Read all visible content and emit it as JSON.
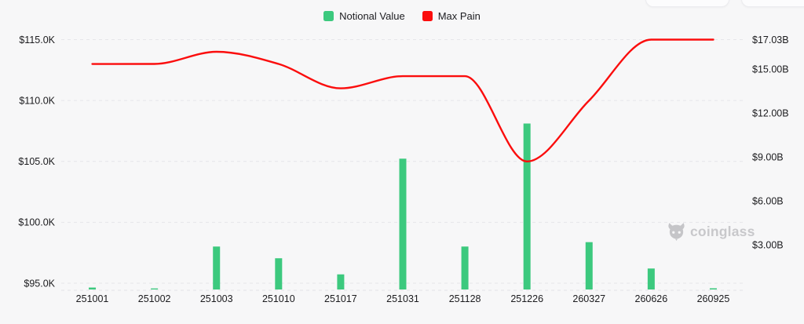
{
  "page": {
    "background_color": "#f7f7f8"
  },
  "legend": {
    "items": [
      {
        "label": "Notional Value",
        "color": "#3cc97e"
      },
      {
        "label": "Max Pain",
        "color": "#fb0d0d"
      }
    ]
  },
  "watermark": {
    "text": "coinglass",
    "color": "#c8c8cb"
  },
  "chart_data": {
    "type": "combo",
    "title": "",
    "categories": [
      "251001",
      "251002",
      "251003",
      "251010",
      "251017",
      "251031",
      "251128",
      "251226",
      "260327",
      "260626",
      "260925"
    ],
    "series": [
      {
        "name": "Notional Value",
        "type": "bar",
        "y_axis": "right",
        "color": "#3cc97e",
        "unit": "B USD",
        "values": [
          0.1,
          0.04,
          2.9,
          2.1,
          1.0,
          8.9,
          2.9,
          11.3,
          3.2,
          1.4,
          0.05
        ]
      },
      {
        "name": "Max Pain",
        "type": "line",
        "y_axis": "left",
        "color": "#fb0d0d",
        "unit": "USD",
        "values": [
          113000,
          113000,
          114000,
          113000,
          111000,
          112000,
          112000,
          105000,
          110000,
          115000,
          115000
        ]
      }
    ],
    "left_axis": {
      "tick_labels": [
        "$115.0K",
        "$110.0K",
        "$105.0K",
        "$100.0K",
        "$95.0K"
      ],
      "tick_values": [
        115000,
        110000,
        105000,
        100000,
        95000
      ],
      "min": 95000,
      "max": 115000
    },
    "right_axis": {
      "tick_labels": [
        "$17.03B",
        "$15.00B",
        "$12.00B",
        "$9.00B",
        "$6.00B",
        "$3.00B"
      ],
      "tick_values": [
        17.03,
        15,
        12,
        9,
        6,
        3
      ],
      "min": 0,
      "max": 17.03
    },
    "grid": "dashed-horizontal",
    "legend_position": "top-center",
    "axis_text_color": "#1b1b1e",
    "grid_color": "#e6e6e9"
  }
}
